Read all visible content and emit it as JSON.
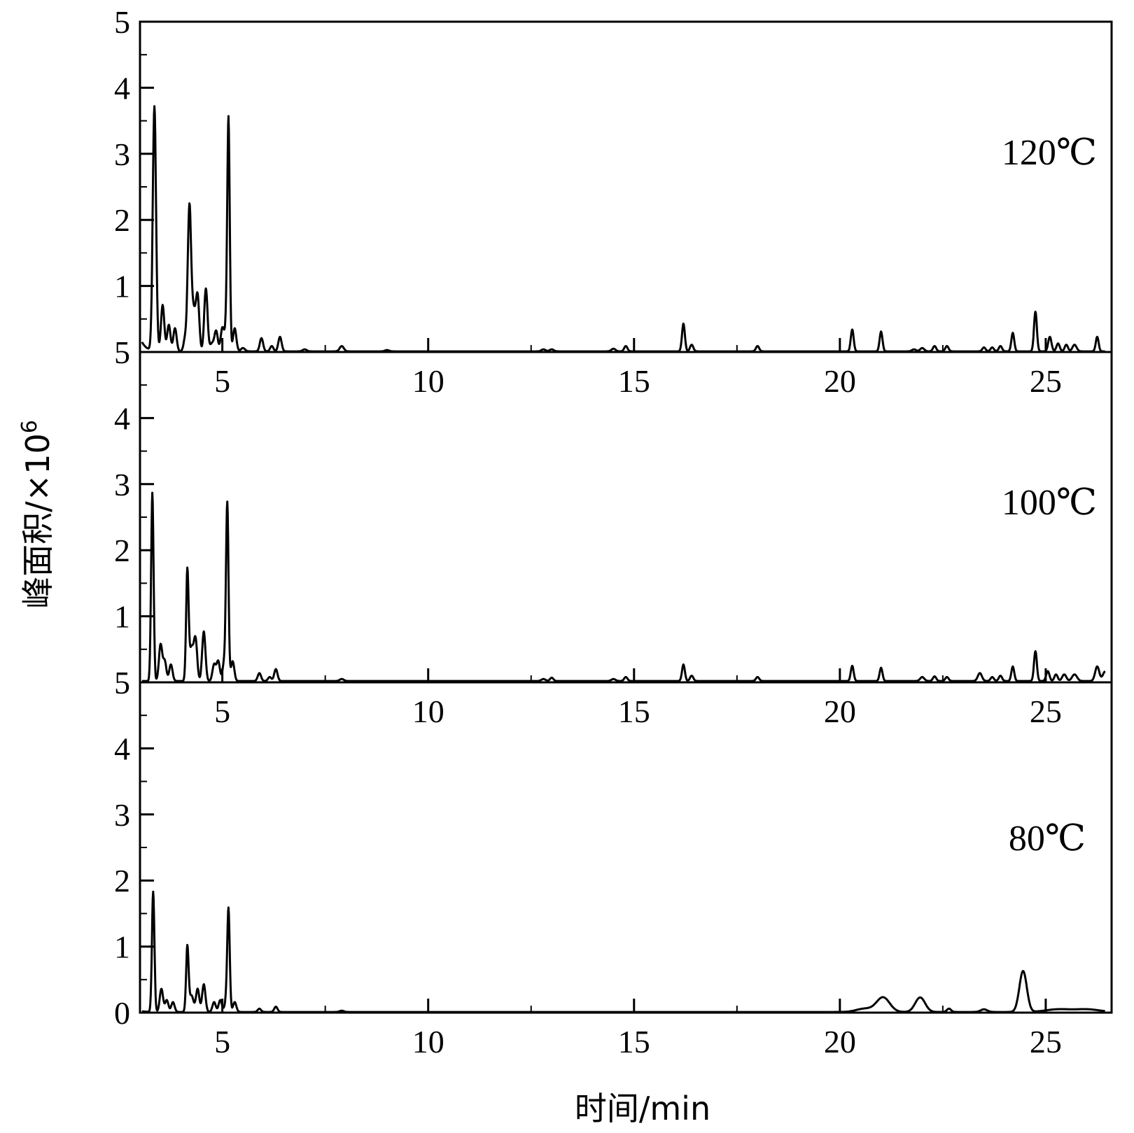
{
  "chart_data": {
    "type": "line",
    "layout": "three stacked panels sharing x axis",
    "xlabel": "时间/min",
    "ylabel_main": "峰面积/×10",
    "ylabel_exp": "6",
    "xlim": [
      3.0,
      26.6
    ],
    "ylim": [
      0,
      5
    ],
    "x_ticks": [
      5,
      10,
      15,
      20,
      25
    ],
    "y_ticks_top": [
      1,
      2,
      3,
      4,
      5
    ],
    "y_ticks_middle": [
      1,
      2,
      3,
      4,
      5
    ],
    "y_ticks_bottom": [
      0,
      1,
      2,
      3,
      4,
      5
    ],
    "grid": false,
    "series": [
      {
        "name": "120℃",
        "panel": "top",
        "baseline": 0.01,
        "start": 0.15,
        "peaks": [
          [
            3.35,
            3.7,
            0.04
          ],
          [
            3.55,
            0.7,
            0.04
          ],
          [
            3.7,
            0.4,
            0.04
          ],
          [
            3.85,
            0.35,
            0.04
          ],
          [
            4.1,
            0.2,
            0.04
          ],
          [
            4.2,
            2.15,
            0.04
          ],
          [
            4.3,
            0.6,
            0.05
          ],
          [
            4.4,
            0.8,
            0.04
          ],
          [
            4.6,
            0.95,
            0.04
          ],
          [
            4.75,
            0.12,
            0.05
          ],
          [
            4.85,
            0.3,
            0.04
          ],
          [
            5.0,
            0.35,
            0.04
          ],
          [
            5.1,
            0.35,
            0.04
          ],
          [
            5.15,
            3.4,
            0.03
          ],
          [
            5.3,
            0.35,
            0.04
          ],
          [
            5.5,
            0.05,
            0.05
          ],
          [
            5.95,
            0.2,
            0.04
          ],
          [
            6.2,
            0.08,
            0.04
          ],
          [
            6.4,
            0.22,
            0.04
          ],
          [
            7.0,
            0.03,
            0.05
          ],
          [
            7.9,
            0.08,
            0.05
          ],
          [
            9.0,
            0.02,
            0.05
          ],
          [
            12.8,
            0.03,
            0.05
          ],
          [
            13.0,
            0.03,
            0.05
          ],
          [
            14.5,
            0.04,
            0.05
          ],
          [
            14.8,
            0.08,
            0.04
          ],
          [
            16.2,
            0.42,
            0.035
          ],
          [
            16.4,
            0.1,
            0.04
          ],
          [
            18.0,
            0.08,
            0.04
          ],
          [
            20.3,
            0.33,
            0.035
          ],
          [
            21.0,
            0.3,
            0.035
          ],
          [
            21.8,
            0.03,
            0.05
          ],
          [
            22.0,
            0.05,
            0.05
          ],
          [
            22.3,
            0.08,
            0.04
          ],
          [
            22.6,
            0.08,
            0.04
          ],
          [
            23.5,
            0.06,
            0.04
          ],
          [
            23.7,
            0.06,
            0.04
          ],
          [
            23.9,
            0.08,
            0.04
          ],
          [
            24.2,
            0.28,
            0.035
          ],
          [
            24.75,
            0.6,
            0.035
          ],
          [
            25.1,
            0.22,
            0.04
          ],
          [
            25.3,
            0.12,
            0.04
          ],
          [
            25.5,
            0.1,
            0.04
          ],
          [
            25.7,
            0.1,
            0.05
          ],
          [
            26.25,
            0.22,
            0.035
          ]
        ]
      },
      {
        "name": "100℃",
        "panel": "middle",
        "baseline": 0.02,
        "start": 0.02,
        "peaks": [
          [
            3.3,
            2.85,
            0.03
          ],
          [
            3.5,
            0.55,
            0.04
          ],
          [
            3.6,
            0.3,
            0.04
          ],
          [
            3.75,
            0.25,
            0.04
          ],
          [
            4.15,
            1.65,
            0.03
          ],
          [
            4.25,
            0.5,
            0.05
          ],
          [
            4.35,
            0.6,
            0.04
          ],
          [
            4.55,
            0.75,
            0.04
          ],
          [
            4.8,
            0.25,
            0.04
          ],
          [
            4.9,
            0.3,
            0.04
          ],
          [
            5.05,
            0.3,
            0.04
          ],
          [
            5.12,
            2.65,
            0.03
          ],
          [
            5.25,
            0.3,
            0.04
          ],
          [
            5.9,
            0.12,
            0.04
          ],
          [
            6.15,
            0.06,
            0.04
          ],
          [
            6.3,
            0.18,
            0.04
          ],
          [
            7.9,
            0.03,
            0.05
          ],
          [
            12.8,
            0.03,
            0.05
          ],
          [
            13.0,
            0.05,
            0.04
          ],
          [
            14.5,
            0.03,
            0.05
          ],
          [
            14.8,
            0.06,
            0.04
          ],
          [
            16.2,
            0.25,
            0.035
          ],
          [
            16.4,
            0.08,
            0.04
          ],
          [
            18.0,
            0.06,
            0.04
          ],
          [
            20.3,
            0.23,
            0.035
          ],
          [
            21.0,
            0.2,
            0.035
          ],
          [
            22.0,
            0.06,
            0.05
          ],
          [
            22.3,
            0.07,
            0.04
          ],
          [
            22.6,
            0.06,
            0.04
          ],
          [
            23.4,
            0.12,
            0.05
          ],
          [
            23.7,
            0.06,
            0.04
          ],
          [
            23.9,
            0.08,
            0.04
          ],
          [
            24.2,
            0.22,
            0.035
          ],
          [
            24.75,
            0.45,
            0.035
          ],
          [
            25.05,
            0.15,
            0.04
          ],
          [
            25.25,
            0.1,
            0.04
          ],
          [
            25.45,
            0.1,
            0.05
          ],
          [
            25.7,
            0.1,
            0.06
          ],
          [
            26.25,
            0.22,
            0.05
          ],
          [
            26.45,
            0.15,
            0.06
          ]
        ]
      },
      {
        "name": "80℃",
        "panel": "bottom",
        "baseline": 0.01,
        "start": 0.02,
        "peaks": [
          [
            3.32,
            1.82,
            0.03
          ],
          [
            3.52,
            0.35,
            0.04
          ],
          [
            3.65,
            0.18,
            0.04
          ],
          [
            3.8,
            0.15,
            0.04
          ],
          [
            4.15,
            0.98,
            0.03
          ],
          [
            4.25,
            0.25,
            0.05
          ],
          [
            4.4,
            0.35,
            0.04
          ],
          [
            4.55,
            0.42,
            0.04
          ],
          [
            4.8,
            0.15,
            0.04
          ],
          [
            4.95,
            0.18,
            0.04
          ],
          [
            5.1,
            0.18,
            0.04
          ],
          [
            5.15,
            1.5,
            0.03
          ],
          [
            5.3,
            0.15,
            0.04
          ],
          [
            5.9,
            0.05,
            0.04
          ],
          [
            6.3,
            0.08,
            0.04
          ],
          [
            7.9,
            0.02,
            0.05
          ],
          [
            20.6,
            0.05,
            0.2
          ],
          [
            21.05,
            0.22,
            0.16
          ],
          [
            21.95,
            0.22,
            0.12
          ],
          [
            22.65,
            0.05,
            0.05
          ],
          [
            23.5,
            0.04,
            0.08
          ],
          [
            24.45,
            0.62,
            0.09
          ],
          [
            25.3,
            0.04,
            0.3
          ],
          [
            26.0,
            0.04,
            0.3
          ]
        ]
      }
    ]
  }
}
